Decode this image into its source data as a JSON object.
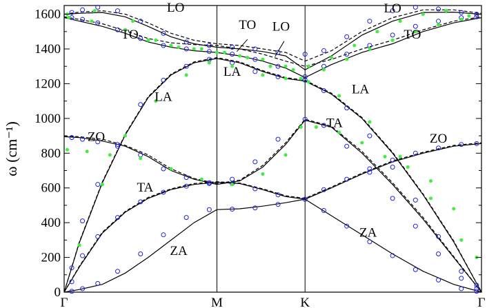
{
  "chart_data": {
    "type": "line",
    "ylabel": "ω (cm⁻¹)",
    "ylim": [
      0,
      1650
    ],
    "yticks": [
      0,
      200,
      400,
      600,
      800,
      1000,
      1200,
      1400,
      1600
    ],
    "xticks": [
      {
        "label": "Γ",
        "x": 0
      },
      {
        "label": "M",
        "x": 1
      },
      {
        "label": "K",
        "x": 1.577
      },
      {
        "label": "Γ",
        "x": 2.732
      }
    ],
    "grid": false,
    "legend": "none",
    "series": [
      {
        "style": "solid",
        "x": [
          0,
          0.1,
          0.25,
          0.4,
          0.55,
          0.7,
          0.85,
          1,
          1.15,
          1.3,
          1.45,
          1.577,
          1.75,
          1.95,
          2.15,
          2.35,
          2.55,
          2.732
        ],
        "y": [
          0,
          15,
          45,
          110,
          200,
          300,
          400,
          475,
          480,
          495,
          515,
          535,
          440,
          330,
          220,
          120,
          45,
          0
        ]
      },
      {
        "style": "solid",
        "x": [
          0,
          0.1,
          0.25,
          0.4,
          0.55,
          0.7,
          0.85,
          1,
          1.15,
          1.3,
          1.45,
          1.577,
          1.75,
          1.95,
          2.15,
          2.35,
          2.55,
          2.732
        ],
        "y": [
          0,
          145,
          340,
          460,
          540,
          590,
          620,
          632,
          625,
          590,
          550,
          535,
          600,
          680,
          750,
          800,
          840,
          855
        ]
      },
      {
        "style": "solid",
        "x": [
          0,
          0.1,
          0.25,
          0.4,
          0.55,
          0.7,
          0.85,
          1,
          1.15,
          1.3,
          1.45,
          1.577,
          1.75,
          1.95,
          2.15,
          2.35,
          2.55,
          2.732
        ],
        "y": [
          895,
          890,
          870,
          840,
          780,
          700,
          650,
          620,
          640,
          720,
          850,
          990,
          950,
          800,
          620,
          420,
          200,
          0
        ]
      },
      {
        "style": "solid",
        "x": [
          0,
          0.1,
          0.25,
          0.4,
          0.55,
          0.7,
          0.85,
          1,
          1.15,
          1.3,
          1.45,
          1.577,
          1.75,
          1.95,
          2.15,
          2.35,
          2.55,
          2.732
        ],
        "y": [
          0,
          285,
          630,
          905,
          1120,
          1250,
          1320,
          1345,
          1320,
          1270,
          1230,
          1215,
          1140,
          1000,
          800,
          560,
          290,
          0
        ]
      },
      {
        "style": "solid",
        "x": [
          0,
          0.1,
          0.25,
          0.4,
          0.55,
          0.7,
          0.85,
          1,
          1.15,
          1.3,
          1.45,
          1.577,
          1.75,
          1.95,
          2.15,
          2.35,
          2.55,
          2.732
        ],
        "y": [
          1580,
          1560,
          1530,
          1490,
          1440,
          1410,
          1390,
          1380,
          1360,
          1330,
          1290,
          1235,
          1310,
          1380,
          1430,
          1500,
          1550,
          1580
        ]
      },
      {
        "style": "solid",
        "x": [
          0,
          0.1,
          0.25,
          0.4,
          0.55,
          0.7,
          0.85,
          1,
          1.15,
          1.3,
          1.45,
          1.577,
          1.75,
          1.95,
          2.15,
          2.35,
          2.55,
          2.732
        ],
        "y": [
          1600,
          1605,
          1610,
          1585,
          1530,
          1470,
          1430,
          1410,
          1400,
          1385,
          1360,
          1280,
          1360,
          1480,
          1560,
          1610,
          1612,
          1600
        ]
      },
      {
        "style": "dashed",
        "x": [
          0,
          0.1,
          0.25,
          0.4,
          0.55,
          0.7,
          0.85,
          1,
          1.15,
          1.3,
          1.45,
          1.577,
          1.75,
          1.95,
          2.15,
          2.35,
          2.55,
          2.732
        ],
        "y": [
          1585,
          1570,
          1545,
          1505,
          1460,
          1435,
          1425,
          1420,
          1400,
          1370,
          1330,
          1300,
          1340,
          1400,
          1450,
          1510,
          1560,
          1585
        ]
      },
      {
        "style": "dashed",
        "x": [
          0,
          0.1,
          0.25,
          0.4,
          0.55,
          0.7,
          0.85,
          1,
          1.15,
          1.3,
          1.45,
          1.577,
          1.75,
          1.95,
          2.15,
          2.35,
          2.55,
          2.732
        ],
        "y": [
          1600,
          1612,
          1620,
          1600,
          1550,
          1490,
          1450,
          1430,
          1420,
          1400,
          1380,
          1330,
          1390,
          1500,
          1580,
          1625,
          1625,
          1605
        ]
      },
      {
        "style": "dashed",
        "x": [
          0,
          0.1,
          0.25,
          0.4,
          0.55,
          0.7,
          0.85,
          1,
          1.15,
          1.3,
          1.45,
          1.577,
          1.75,
          1.95,
          2.15,
          2.35,
          2.55,
          2.732
        ],
        "y": [
          900,
          895,
          880,
          845,
          790,
          710,
          655,
          625,
          645,
          730,
          860,
          995,
          955,
          810,
          630,
          430,
          205,
          0
        ]
      },
      {
        "style": "dashed",
        "x": [
          0,
          0.1,
          0.25,
          0.4,
          0.55,
          0.7,
          0.85,
          1,
          1.15,
          1.3,
          1.45,
          1.577,
          1.75,
          1.95,
          2.15,
          2.35,
          2.55,
          2.732
        ],
        "y": [
          0,
          290,
          635,
          910,
          1125,
          1255,
          1325,
          1350,
          1325,
          1275,
          1235,
          1220,
          1145,
          1005,
          805,
          565,
          295,
          0
        ]
      },
      {
        "style": "dashed",
        "x": [
          0,
          0.1,
          0.25,
          0.4,
          0.55,
          0.7,
          0.85,
          1,
          1.15,
          1.3,
          1.45,
          1.577,
          1.75,
          1.95,
          2.15,
          2.35,
          2.55,
          2.732
        ],
        "y": [
          0,
          150,
          345,
          465,
          545,
          595,
          625,
          636,
          628,
          595,
          555,
          540,
          605,
          685,
          755,
          805,
          845,
          860
        ]
      },
      {
        "style": "circles",
        "x": [
          0.05,
          0.12,
          0.22,
          0.35,
          0.5,
          0.65,
          0.8,
          0.95,
          1.1,
          1.25,
          1.4,
          1.577,
          1.7,
          1.85,
          2,
          2.15,
          2.3,
          2.45,
          2.6,
          2.7
        ],
        "y": [
          5,
          20,
          50,
          120,
          220,
          330,
          430,
          475,
          478,
          485,
          505,
          535,
          470,
          380,
          290,
          210,
          130,
          70,
          20,
          5
        ]
      },
      {
        "style": "circles",
        "x": [
          0.05,
          0.12,
          0.22,
          0.35,
          0.5,
          0.65,
          0.8,
          0.95,
          1.1,
          1.25,
          1.4,
          1.577,
          1.7,
          1.85,
          2,
          2.15,
          2.3,
          2.45,
          2.6,
          2.7
        ],
        "y": [
          60,
          210,
          320,
          430,
          520,
          575,
          610,
          630,
          625,
          595,
          560,
          535,
          590,
          650,
          710,
          760,
          800,
          830,
          850,
          855
        ]
      },
      {
        "style": "circles",
        "x": [
          0.05,
          0.12,
          0.22,
          0.35,
          0.5,
          0.65,
          0.8,
          0.95,
          1.1,
          1.25,
          1.4,
          1.577,
          1.7,
          1.85,
          2,
          2.15,
          2.3,
          2.45,
          2.6,
          2.7
        ],
        "y": [
          890,
          880,
          865,
          840,
          790,
          710,
          660,
          625,
          650,
          750,
          880,
          995,
          960,
          840,
          690,
          540,
          380,
          220,
          80,
          20
        ]
      },
      {
        "style": "circles",
        "x": [
          0.05,
          0.12,
          0.22,
          0.35,
          0.5,
          0.65,
          0.8,
          0.95,
          1.1,
          1.25,
          1.4,
          1.577,
          1.7,
          1.85,
          2,
          2.15,
          2.3,
          2.45,
          2.6,
          2.7
        ],
        "y": [
          140,
          410,
          620,
          850,
          1080,
          1220,
          1300,
          1340,
          1320,
          1270,
          1240,
          1220,
          1160,
          1060,
          900,
          720,
          530,
          320,
          120,
          40
        ]
      },
      {
        "style": "circles",
        "x": [
          0.05,
          0.12,
          0.22,
          0.35,
          0.5,
          0.65,
          0.8,
          0.95,
          1.1,
          1.25,
          1.4,
          1.577,
          1.7,
          1.85,
          2,
          2.15,
          2.3,
          2.45,
          2.6,
          2.7
        ],
        "y": [
          1580,
          1570,
          1550,
          1510,
          1460,
          1420,
          1400,
          1385,
          1370,
          1340,
          1300,
          1240,
          1300,
          1370,
          1420,
          1480,
          1530,
          1560,
          1580,
          1585
        ]
      },
      {
        "style": "circles",
        "x": [
          0.05,
          0.12,
          0.22,
          0.35,
          0.5,
          0.65,
          0.8,
          0.95,
          1.1,
          1.25,
          1.4,
          1.577,
          1.7,
          1.85,
          2,
          2.15,
          2.3,
          2.45,
          2.6,
          2.7
        ],
        "y": [
          1610,
          1625,
          1640,
          1620,
          1560,
          1490,
          1440,
          1420,
          1410,
          1400,
          1380,
          1370,
          1390,
          1470,
          1560,
          1620,
          1640,
          1630,
          1610,
          1600
        ]
      },
      {
        "style": "green-dots",
        "x": [
          0.02,
          0.2,
          0.45,
          0.6,
          0.75,
          0.9,
          1.05,
          1.2,
          1.35,
          1.5,
          1.6,
          1.75,
          1.9,
          2.05,
          2.2,
          2.35,
          2.5,
          2.65
        ],
        "y": [
          1600,
          1620,
          1560,
          1450,
          1410,
          1400,
          1380,
          1350,
          1300,
          1280,
          1300,
          1350,
          1420,
          1500,
          1560,
          1600,
          1620,
          1590
        ]
      },
      {
        "style": "green-dots",
        "x": [
          0.03,
          0.18,
          0.4,
          0.55,
          0.7,
          0.85,
          1.0,
          1.15,
          1.3,
          1.45,
          1.55,
          1.7,
          1.85,
          2.0,
          2.15,
          2.3,
          2.45,
          2.6
        ],
        "y": [
          1580,
          1560,
          1510,
          1450,
          1420,
          1400,
          1380,
          1360,
          1340,
          1300,
          1230,
          1280,
          1340,
          1400,
          1450,
          1500,
          1540,
          1570
        ]
      },
      {
        "style": "green-dots",
        "x": [
          0.02,
          0.15,
          0.3,
          0.5,
          0.7,
          0.9,
          1.1,
          1.3,
          1.45,
          1.55,
          1.65,
          1.8,
          1.95,
          2.1,
          2.25,
          2.4,
          2.55,
          2.7
        ],
        "y": [
          820,
          810,
          790,
          770,
          710,
          650,
          620,
          680,
          790,
          950,
          950,
          920,
          860,
          780,
          720,
          640,
          480,
          200
        ]
      },
      {
        "style": "green-dots",
        "x": [
          0.1,
          0.25,
          0.4,
          0.6,
          0.8,
          0.95,
          1.1,
          1.3,
          1.45,
          1.6,
          1.8,
          2.0,
          2.2,
          2.4,
          2.6
        ],
        "y": [
          270,
          620,
          900,
          1100,
          1250,
          1320,
          1300,
          1250,
          1230,
          1210,
          1130,
          980,
          780,
          540,
          300
        ]
      }
    ],
    "annotations": [
      {
        "text": "LO",
        "x": 0.73,
        "y": 1615
      },
      {
        "text": "TO",
        "x": 0.43,
        "y": 1460
      },
      {
        "text": "TO",
        "x": 1.2,
        "y": 1515
      },
      {
        "text": "LO",
        "x": 1.42,
        "y": 1505
      },
      {
        "text": "LA",
        "x": 1.1,
        "y": 1245
      },
      {
        "text": "LA",
        "x": 0.65,
        "y": 1100
      },
      {
        "text": "LA",
        "x": 1.94,
        "y": 1145
      },
      {
        "text": "LO",
        "x": 2.15,
        "y": 1610
      },
      {
        "text": "TO",
        "x": 2.28,
        "y": 1460
      },
      {
        "text": "TA",
        "x": 1.77,
        "y": 950
      },
      {
        "text": "ZO",
        "x": 0.21,
        "y": 870
      },
      {
        "text": "ZO",
        "x": 2.45,
        "y": 860
      },
      {
        "text": "TA",
        "x": 0.53,
        "y": 580
      },
      {
        "text": "ZA",
        "x": 0.75,
        "y": 215
      },
      {
        "text": "ZA",
        "x": 1.99,
        "y": 320
      }
    ]
  }
}
